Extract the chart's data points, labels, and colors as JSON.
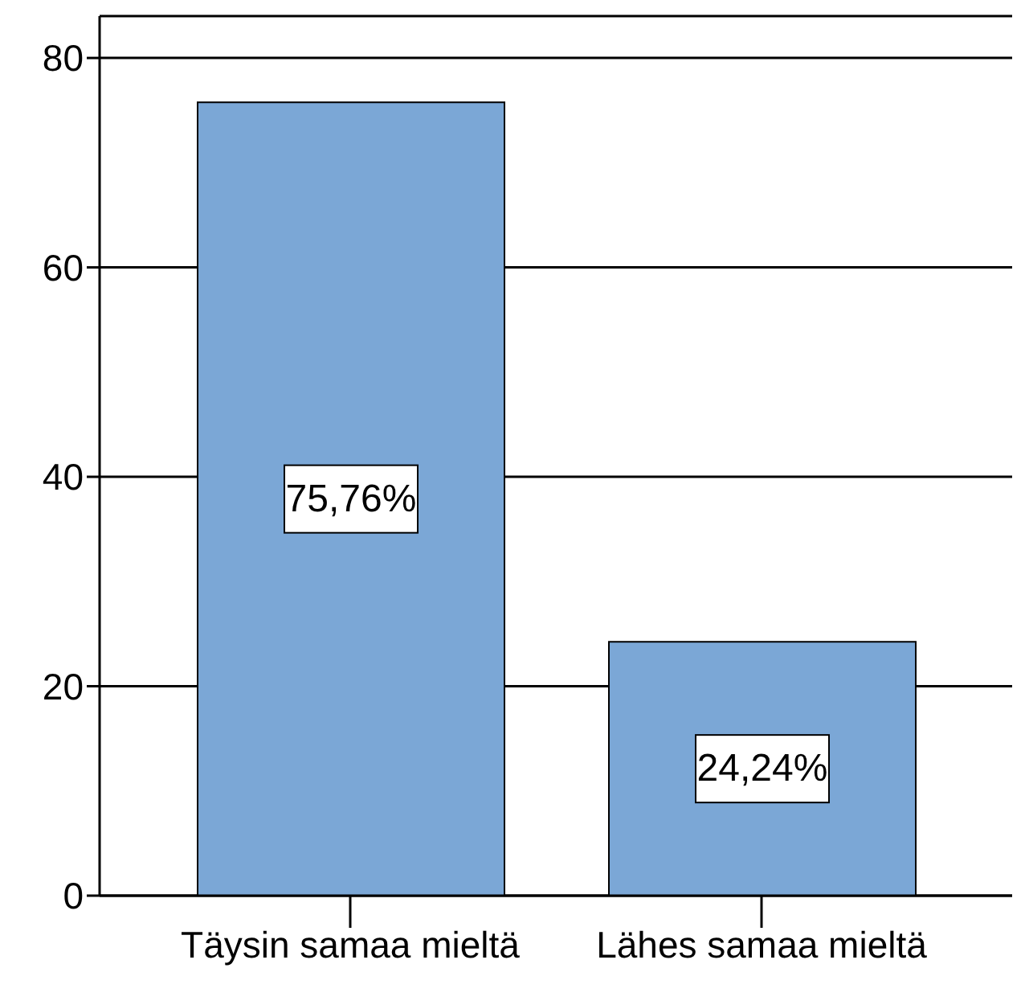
{
  "chart_data": {
    "type": "bar",
    "categories": [
      "Täysin samaa mieltä",
      "Lähes samaa mieltä"
    ],
    "values": [
      75.76,
      24.24
    ],
    "value_labels": [
      "75,76%",
      "24,24%"
    ],
    "color": "#7ba7d6",
    "ylim": [
      0,
      84
    ],
    "yticks": [
      0,
      20,
      40,
      60,
      80
    ],
    "grid": "y"
  }
}
